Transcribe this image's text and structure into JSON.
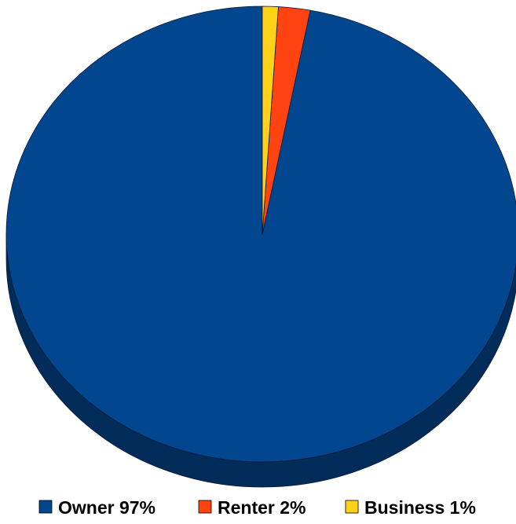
{
  "chart_data": {
    "type": "pie",
    "style": "3d",
    "slices": [
      {
        "label": "Owner 97%",
        "value": 97,
        "color": "#02468f"
      },
      {
        "label": "Renter 2%",
        "value": 2,
        "color": "#ff4412"
      },
      {
        "label": "Business 1%",
        "value": 1,
        "color": "#ffd21a"
      }
    ],
    "legend": {
      "position": "bottom",
      "items": [
        "Owner 97%",
        "Renter 2%",
        "Business 1%"
      ]
    }
  }
}
